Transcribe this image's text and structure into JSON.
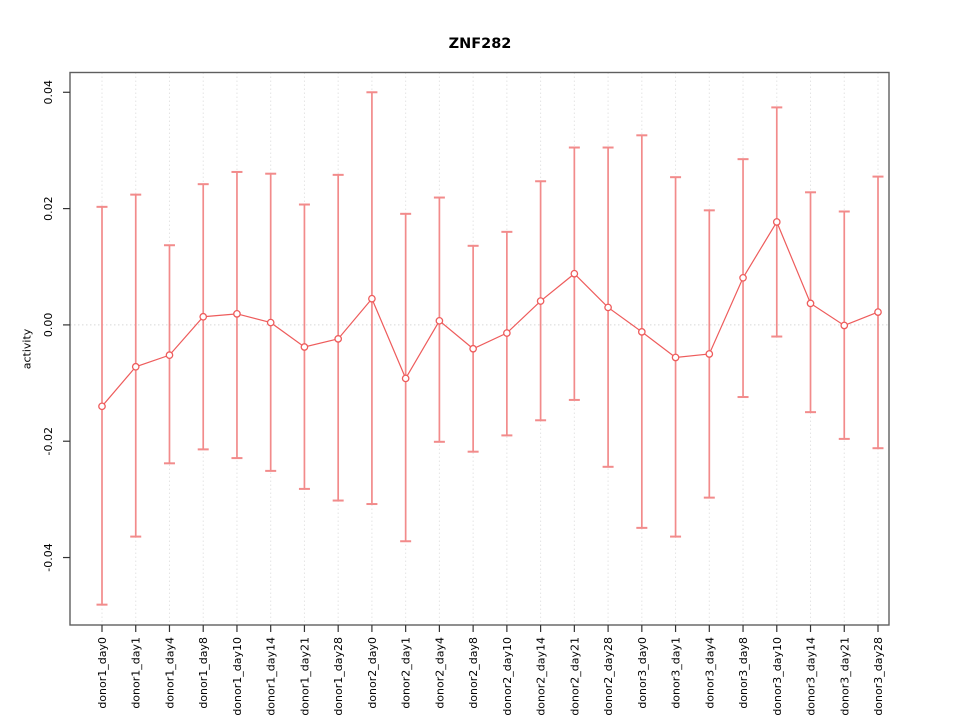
{
  "chart_data": {
    "type": "line",
    "title": "ZNF282",
    "xlabel": "",
    "ylabel": "activity",
    "legend_position": "none",
    "categories": [
      "donor1_day0",
      "donor1_day1",
      "donor1_day4",
      "donor1_day8",
      "donor1_day10",
      "donor1_day14",
      "donor1_day21",
      "donor1_day28",
      "donor2_day0",
      "donor2_day1",
      "donor2_day4",
      "donor2_day8",
      "donor2_day10",
      "donor2_day14",
      "donor2_day21",
      "donor2_day28",
      "donor3_day0",
      "donor3_day1",
      "donor3_day4",
      "donor3_day8",
      "donor3_day10",
      "donor3_day14",
      "donor3_day21",
      "donor3_day28"
    ],
    "series": [
      {
        "name": "activity",
        "values": [
          -0.014,
          -0.0072,
          -0.0052,
          0.0014,
          0.0019,
          0.0004,
          -0.0038,
          -0.0024,
          0.0045,
          -0.0092,
          0.0007,
          -0.0041,
          -0.0014,
          0.0041,
          0.0088,
          0.003,
          -0.0012,
          -0.0056,
          -0.005,
          0.0081,
          0.0177,
          0.0037,
          -0.0001,
          0.0022
        ],
        "error_low": [
          -0.0481,
          -0.0364,
          -0.0238,
          -0.0214,
          -0.0229,
          -0.0251,
          -0.0282,
          -0.0302,
          -0.0308,
          -0.0372,
          -0.0201,
          -0.0218,
          -0.019,
          -0.0164,
          -0.0129,
          -0.0244,
          -0.0349,
          -0.0364,
          -0.0297,
          -0.0124,
          -0.002,
          -0.015,
          -0.0196,
          -0.0212
        ],
        "error_high": [
          0.0203,
          0.0224,
          0.0137,
          0.0242,
          0.0263,
          0.026,
          0.0207,
          0.0258,
          0.04,
          0.0191,
          0.0219,
          0.0136,
          0.016,
          0.0247,
          0.0305,
          0.0305,
          0.0326,
          0.0254,
          0.0197,
          0.0285,
          0.0374,
          0.0228,
          0.0195,
          0.0255
        ]
      }
    ],
    "yticks": [
      -0.04,
      -0.02,
      0,
      0.02,
      0.04
    ],
    "ytick_labels": [
      "-0.04",
      "-0.02",
      "0.00",
      "0.02",
      "0.04"
    ],
    "ylim": [
      -0.0516,
      0.0434
    ],
    "grid": {
      "vertical_dotted_per_category": true,
      "horizontal_dotted_at_zero": true
    },
    "colors": {
      "errorbar": "#f28b8b",
      "line": "#ee5c5c",
      "point_stroke": "#ee5c5c",
      "point_fill": "#ffffff",
      "grid": "#e4e4e4",
      "zero_line": "#d8d8d8",
      "box": "#5f5f5f",
      "tick": "#333333",
      "text": "#000000",
      "background": "#ffffff"
    }
  }
}
